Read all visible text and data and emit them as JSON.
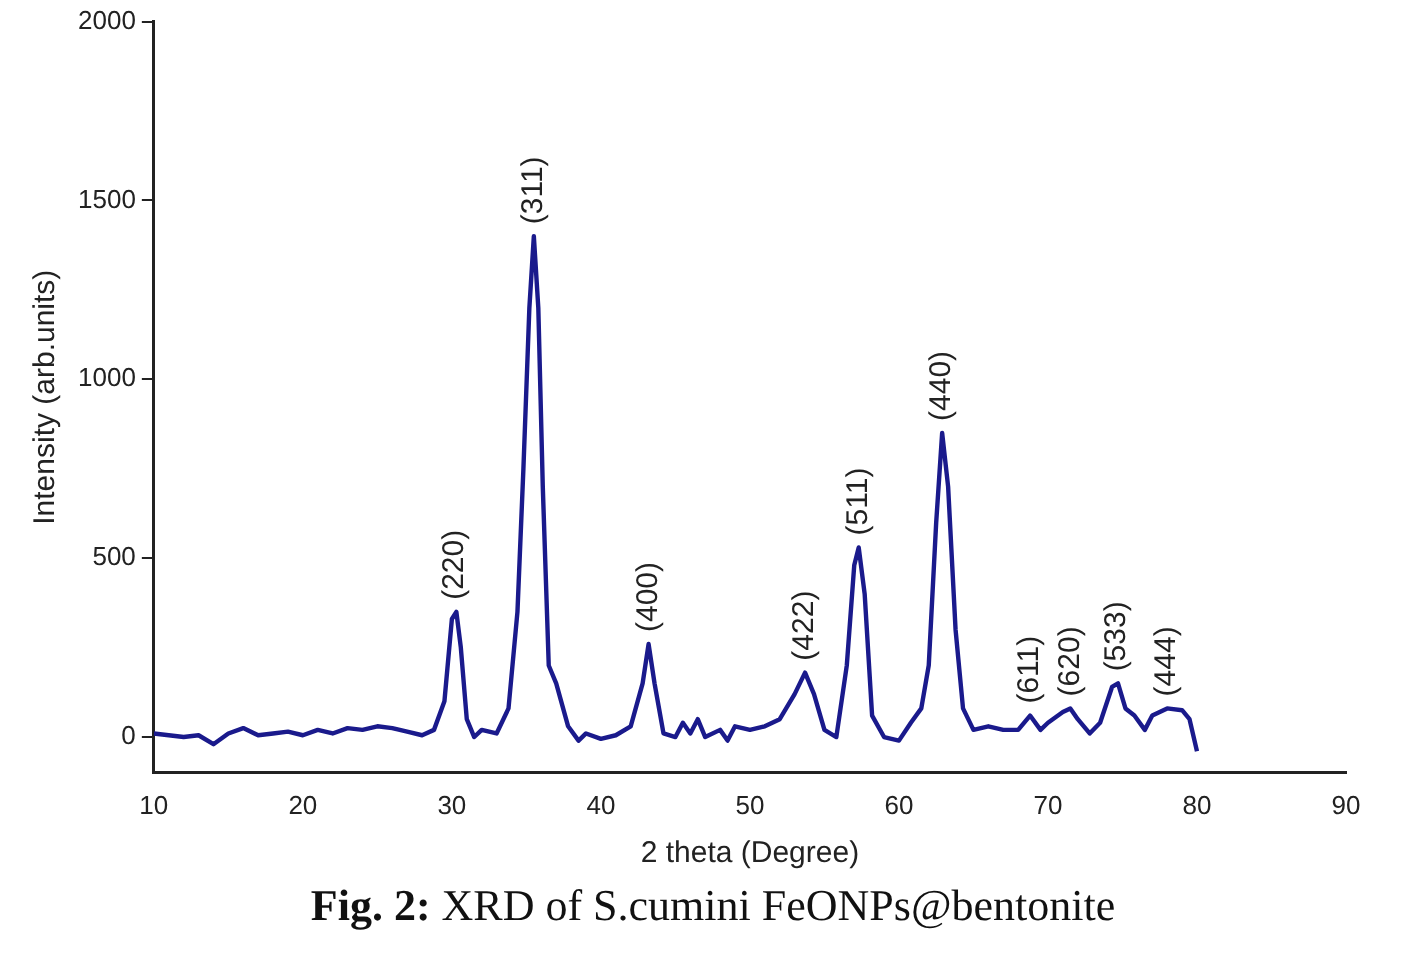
{
  "chart_data": {
    "type": "line",
    "title": "Fig. 2: XRD of S.cumini FeONPs@bentonite",
    "xlabel": "2 theta (Degree)",
    "ylabel": "Intensity (arb.units)",
    "xlim": [
      10,
      90
    ],
    "xticks": [
      10,
      20,
      30,
      40,
      50,
      60,
      70,
      80,
      90
    ],
    "ylim": [
      -100,
      2000
    ],
    "yticks": [
      0,
      500,
      1000,
      1500,
      2000
    ],
    "grid": false,
    "legend": false,
    "marker": "none",
    "line_style": "solid",
    "series": [
      {
        "color": "#1a1a8c",
        "x": [
          10,
          11,
          12,
          13,
          14,
          15,
          16,
          17,
          18,
          19,
          20,
          21,
          22,
          23,
          24,
          25,
          26,
          27,
          28,
          28.8,
          29.5,
          30,
          30.3,
          30.6,
          31,
          31.5,
          32,
          33,
          33.8,
          34.4,
          34.8,
          35.2,
          35.5,
          35.8,
          36.1,
          36.5,
          37,
          37.8,
          38.5,
          39,
          40,
          41,
          42,
          42.8,
          43.2,
          43.6,
          44.2,
          45,
          45.5,
          46,
          46.5,
          47,
          48,
          48.5,
          49,
          50,
          51,
          52,
          53,
          53.7,
          54.3,
          55,
          55.8,
          56.5,
          57,
          57.3,
          57.7,
          58.2,
          59,
          60,
          60.8,
          61.5,
          62,
          62.5,
          62.9,
          63.3,
          63.8,
          64.3,
          65,
          66,
          67,
          68,
          68.8,
          69.5,
          70,
          71,
          71.5,
          72,
          72.8,
          73.5,
          74.3,
          74.7,
          75.2,
          75.8,
          76.5,
          77,
          78,
          79,
          79.5,
          80
        ],
        "values": [
          10,
          5,
          0,
          5,
          -20,
          10,
          25,
          5,
          10,
          15,
          5,
          20,
          10,
          25,
          20,
          30,
          25,
          15,
          5,
          20,
          100,
          330,
          350,
          250,
          50,
          0,
          20,
          10,
          80,
          350,
          750,
          1200,
          1400,
          1200,
          700,
          200,
          150,
          30,
          -10,
          10,
          -5,
          5,
          30,
          150,
          260,
          150,
          10,
          0,
          40,
          10,
          50,
          0,
          20,
          -10,
          30,
          20,
          30,
          50,
          120,
          180,
          120,
          20,
          0,
          200,
          480,
          530,
          400,
          60,
          0,
          -10,
          40,
          80,
          200,
          600,
          850,
          700,
          300,
          80,
          20,
          30,
          20,
          20,
          60,
          20,
          40,
          70,
          80,
          50,
          10,
          40,
          140,
          150,
          80,
          60,
          20,
          60,
          80,
          75,
          50,
          -40
        ]
      }
    ],
    "annotations": [
      {
        "text": "(220)",
        "x": 30.2,
        "y": 350
      },
      {
        "text": "(311)",
        "x": 35.5,
        "y": 1400
      },
      {
        "text": "(400)",
        "x": 43.2,
        "y": 260
      },
      {
        "text": "(422)",
        "x": 53.7,
        "y": 180
      },
      {
        "text": "(511)",
        "x": 57.3,
        "y": 530
      },
      {
        "text": "(440)",
        "x": 62.9,
        "y": 850
      },
      {
        "text": "(611)",
        "x": 68.8,
        "y": 60
      },
      {
        "text": "(620)",
        "x": 71.5,
        "y": 80
      },
      {
        "text": "(533)",
        "x": 74.6,
        "y": 150
      },
      {
        "text": "(444)",
        "x": 78,
        "y": 80
      }
    ]
  }
}
